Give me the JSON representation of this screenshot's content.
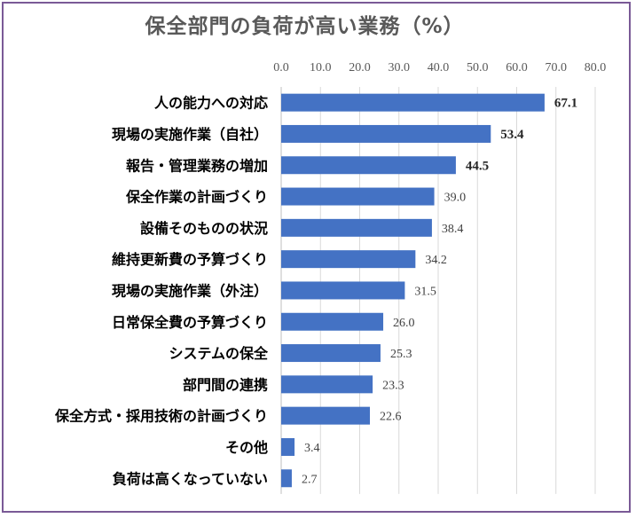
{
  "chart_data": {
    "type": "bar",
    "orientation": "horizontal",
    "title": "保全部門の負荷が高い業務（%）",
    "categories": [
      "人の能力への対応",
      "現場の実施作業（自社）",
      "報告・管理業務の増加",
      "保全作業の計画づくり",
      "設備そのものの状況",
      "維持更新費の予算づくり",
      "現場の実施作業（外注）",
      "日常保全費の予算づくり",
      "システムの保全",
      "部門間の連携",
      "保全方式・採用技術の計画づくり",
      "その他",
      "負荷は高くなっていない"
    ],
    "values": [
      67.1,
      53.4,
      44.5,
      39.0,
      38.4,
      34.2,
      31.5,
      26.0,
      25.3,
      23.3,
      22.6,
      3.4,
      2.7
    ],
    "value_labels": [
      "67.1",
      "53.4",
      "44.5",
      "39.0",
      "38.4",
      "34.2",
      "31.5",
      "26.0",
      "25.3",
      "23.3",
      "22.6",
      "3.4",
      "2.7"
    ],
    "bold_value_count": 3,
    "xlim": [
      0,
      80
    ],
    "xticks": [
      "0.0",
      "10.0",
      "20.0",
      "30.0",
      "40.0",
      "50.0",
      "60.0",
      "70.0",
      "80.0"
    ],
    "xaxis_position": "top",
    "grid": true,
    "legend": false,
    "bar_color": "#4472c4",
    "grid_color": "#d9d9d9",
    "border_color": "#7a5a96"
  }
}
